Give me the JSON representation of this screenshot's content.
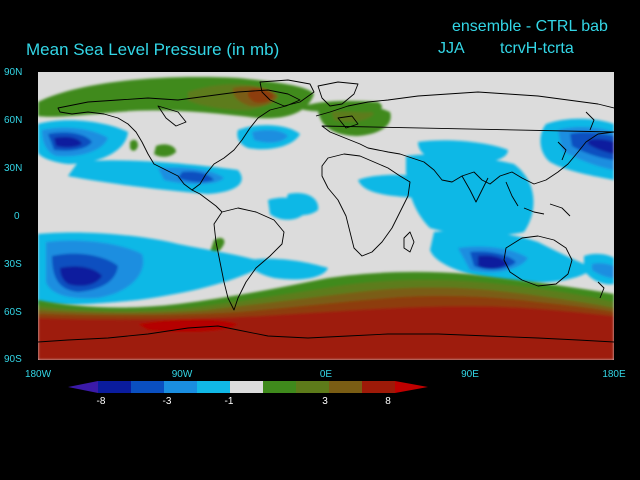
{
  "header": {
    "line1": "ensemble - CTRL bab",
    "title": "Mean Sea Level Pressure (in mb)",
    "season": "JJA",
    "experiment": "tcrvH-tcrta"
  },
  "axes": {
    "y_labels": [
      "90N",
      "60N",
      "30N",
      "0",
      "30S",
      "60S",
      "90S"
    ],
    "x_labels": [
      "180W",
      "90W",
      "0E",
      "90E",
      "180E"
    ]
  },
  "colorbar": {
    "labels": [
      "-8",
      "-3",
      "-1",
      "3",
      "8"
    ],
    "colors": [
      "#3b1aa8",
      "#0a1c9e",
      "#0a4fc0",
      "#1a8ee0",
      "#11b8e6",
      "#dcdcdc",
      "#3f8a1c",
      "#5d7b1a",
      "#7a5d14",
      "#8d3e0e",
      "#9e1a08",
      "#b50000"
    ]
  },
  "colors": {
    "background": "#000000",
    "text_cyan": "#33d6e6",
    "neutral_gray": "#dcdcdc",
    "coast": "#000000"
  }
}
